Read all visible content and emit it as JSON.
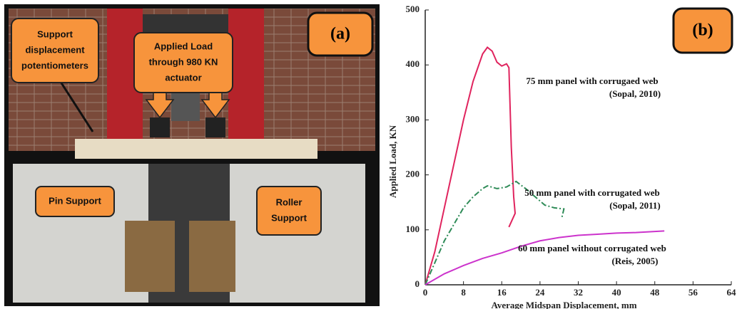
{
  "photo": {
    "panel_label": "(a)",
    "callouts": [
      {
        "lines": [
          "Support",
          "displacement",
          "potentiometers"
        ]
      },
      {
        "lines": [
          "Applied Load",
          "through 980 KN",
          "actuator"
        ]
      },
      {
        "lines": [
          "Pin Support"
        ]
      },
      {
        "lines": [
          "Roller",
          "Support"
        ]
      }
    ]
  },
  "chart_data": {
    "type": "line",
    "panel_label": "(b)",
    "x_label": "Average Midspan Displacement, mm",
    "y_label": "Applied Load, KN",
    "xlim": [
      0,
      64
    ],
    "xticks": [
      0,
      8,
      16,
      24,
      32,
      40,
      48,
      56,
      64
    ],
    "ylim": [
      0,
      500
    ],
    "yticks": [
      0,
      100,
      200,
      300,
      400,
      500
    ],
    "series": [
      {
        "name": "75 mm panel with corrugaed web",
        "source": "(Sopal, 2010)",
        "color": "#e0245e",
        "dash": "solid",
        "x": [
          0,
          2,
          4,
          6,
          8,
          10,
          12,
          13,
          14,
          15,
          16,
          17,
          17.5,
          18,
          18.5,
          18.8,
          17.5
        ],
        "values": [
          0,
          60,
          140,
          220,
          300,
          370,
          420,
          432,
          425,
          405,
          398,
          402,
          395,
          250,
          160,
          130,
          105
        ]
      },
      {
        "name": "50 mm panel with corrugated web",
        "source": "(Sopal, 2011)",
        "color": "#2e8b57",
        "dash": "dashdot",
        "x": [
          0,
          2,
          4,
          6,
          8,
          10,
          12,
          13,
          15,
          17,
          19,
          21,
          23,
          25,
          27,
          29,
          28.5
        ],
        "values": [
          0,
          40,
          80,
          110,
          140,
          160,
          175,
          180,
          175,
          178,
          188,
          175,
          160,
          145,
          140,
          138,
          120
        ]
      },
      {
        "name": "60 mm panel without corrugated web",
        "source": "(Reis, 2005)",
        "color": "#cc33cc",
        "dash": "solid",
        "x": [
          0,
          4,
          8,
          12,
          16,
          20,
          24,
          28,
          32,
          36,
          40,
          44,
          48,
          50
        ],
        "values": [
          0,
          20,
          35,
          48,
          58,
          70,
          80,
          86,
          90,
          92,
          94,
          95,
          97,
          98
        ]
      }
    ]
  }
}
